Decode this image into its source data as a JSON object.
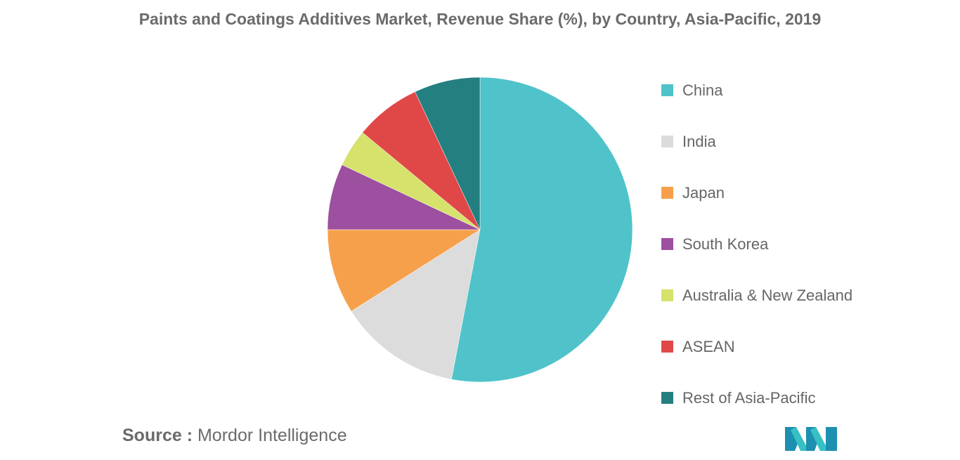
{
  "chart_data": {
    "type": "pie",
    "title": "Paints and Coatings Additives Market, Revenue Share (%), by Country, Asia-Pacific, 2019",
    "categories": [
      "China",
      "India",
      "Japan",
      "South Korea",
      "Australia & New Zealand",
      "ASEAN",
      "Rest of Asia-Pacific"
    ],
    "values": [
      53,
      13,
      9,
      7,
      4,
      7,
      7
    ],
    "colors": [
      "#4fc3c9",
      "#dcdcdc",
      "#f7a04b",
      "#9d4fa0",
      "#d6e26b",
      "#e04848",
      "#247f80"
    ],
    "legend_position": "right"
  },
  "source": {
    "key": "Source :",
    "value": "Mordor Intelligence"
  },
  "logo": {
    "icon": "mordor-intelligence-logo-icon",
    "colors": [
      "#1d8fb0",
      "#36c0c4"
    ]
  }
}
